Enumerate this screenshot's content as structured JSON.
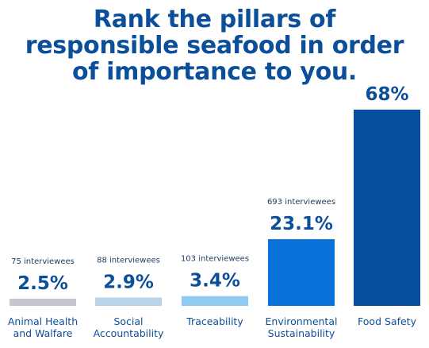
{
  "chart_data": {
    "type": "bar",
    "title_lines": [
      "Rank the pillars of",
      "responsible seafood in order",
      "of importance to you."
    ],
    "categories": [
      [
        "Animal Health",
        "and Walfare"
      ],
      [
        "Social",
        "Accountability"
      ],
      [
        "Traceability"
      ],
      [
        "Environmental",
        "Sustainability"
      ],
      [
        "Food Safety"
      ]
    ],
    "values": [
      2.5,
      2.9,
      3.4,
      23.1,
      68
    ],
    "value_labels": [
      "2.5%",
      "2.9%",
      "3.4%",
      "23.1%",
      "68%"
    ],
    "counts": [
      "75 interviewees",
      "88 interviewees",
      "103 interviewees",
      "693 interviewees",
      ""
    ],
    "bar_colors": [
      "#c4c7cb",
      "#b8d4e6",
      "#8fcaf2",
      "#0a73d9",
      "#06509e"
    ],
    "value_label_color": "#0b4f9a",
    "ylim": [
      0,
      68
    ]
  }
}
